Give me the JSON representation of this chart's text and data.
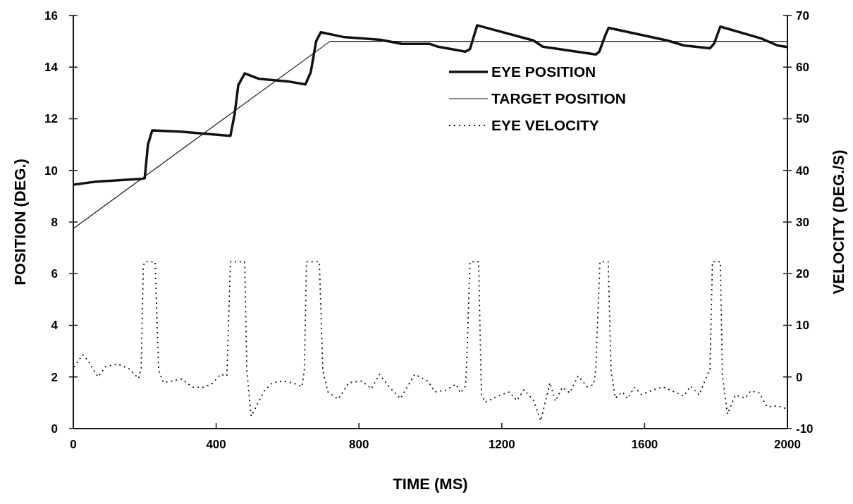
{
  "chart_data": {
    "type": "line",
    "xlabel": "TIME (MS)",
    "ylabel": "POSITION (DEG.)",
    "y2label": "VELOCITY (DEG./S)",
    "xlim": [
      0,
      2000
    ],
    "xticks": [
      0,
      400,
      800,
      1200,
      1600,
      2000
    ],
    "ylim": [
      0,
      16
    ],
    "yticks": [
      0,
      2,
      4,
      6,
      8,
      10,
      12,
      14,
      16
    ],
    "y2lim": [
      -10,
      70
    ],
    "y2ticks": [
      -10,
      0,
      10,
      20,
      30,
      40,
      50,
      60,
      70
    ],
    "legend": "top right",
    "grid": false,
    "series": [
      {
        "name": "EYE POSITION",
        "color": "#111111",
        "line_style": "solid",
        "x": [
          0,
          61,
          190,
          200,
          209,
          221,
          300,
          387,
          440,
          452,
          462,
          480,
          519,
          600,
          650,
          665,
          680,
          693,
          756,
          861,
          920,
          999,
          1019,
          1098,
          1111,
          1131,
          1289,
          1315,
          1463,
          1473,
          1489,
          1499,
          1664,
          1710,
          1783,
          1795,
          1812,
          1927,
          1972,
          2000
        ],
        "values": [
          9.45,
          9.56,
          9.67,
          9.7,
          11.0,
          11.55,
          11.5,
          11.4,
          11.34,
          12.2,
          13.3,
          13.76,
          13.55,
          13.45,
          13.33,
          13.8,
          15.0,
          15.35,
          15.17,
          15.06,
          14.9,
          14.9,
          14.8,
          14.6,
          14.7,
          15.62,
          15.03,
          14.79,
          14.49,
          14.6,
          15.2,
          15.52,
          15.03,
          14.84,
          14.73,
          14.92,
          15.57,
          15.11,
          14.84,
          14.78
        ]
      },
      {
        "name": "TARGET POSITION",
        "color": "#111111",
        "line_style": "solid",
        "x": [
          0,
          719,
          2000
        ],
        "values": [
          7.75,
          15,
          15
        ]
      },
      {
        "name": "EYE VELOCITY",
        "color": "#111111",
        "line_style": "dotted",
        "axis": "y2",
        "x": [
          2,
          26,
          41,
          69,
          91,
          124,
          156,
          183,
          190,
          196,
          200,
          229,
          239,
          252,
          275,
          304,
          334,
          363,
          387,
          413,
          430,
          440,
          480,
          486,
          498,
          519,
          535,
          558,
          588,
          617,
          640,
          647,
          653,
          689,
          699,
          713,
          742,
          772,
          808,
          835,
          857,
          886,
          916,
          956,
          993,
          1013,
          1042,
          1072,
          1084,
          1098,
          1101,
          1111,
          1135,
          1143,
          1153,
          1196,
          1222,
          1242,
          1262,
          1289,
          1309,
          1335,
          1350,
          1370,
          1390,
          1414,
          1439,
          1457,
          1463,
          1475,
          1498,
          1506,
          1518,
          1538,
          1552,
          1572,
          1591,
          1625,
          1651,
          1690,
          1710,
          1729,
          1753,
          1769,
          1783,
          1790,
          1812,
          1818,
          1832,
          1854,
          1882,
          1897,
          1921,
          1943,
          1972,
          2000
        ],
        "values": [
          1.9,
          4.3,
          3.2,
          0.0,
          2.0,
          2.5,
          1.6,
          -0.3,
          1.6,
          21.4,
          22.3,
          22.3,
          1.2,
          -1.1,
          -0.8,
          -0.4,
          -2.0,
          -2.0,
          -1.4,
          0.5,
          0.2,
          22.3,
          22.3,
          1.2,
          -7.6,
          -4.8,
          -2.7,
          -1.1,
          -0.8,
          -1.2,
          -1.9,
          1.2,
          22.3,
          22.3,
          1.2,
          -2.9,
          -4.3,
          -1.1,
          -0.8,
          -2.3,
          0.5,
          -2.0,
          -4.2,
          0.5,
          -0.8,
          -2.9,
          -2.6,
          -1.4,
          -3.1,
          -1.8,
          1.2,
          22.3,
          22.3,
          -3.4,
          -4.9,
          -3.5,
          -2.9,
          -4.6,
          -2.5,
          -4.5,
          -8.5,
          -1.1,
          -4.7,
          -2.0,
          -3.1,
          0.2,
          -1.9,
          -1.5,
          1.2,
          22.3,
          22.3,
          1.2,
          -4.1,
          -2.9,
          -4.2,
          -2.0,
          -3.4,
          -2.5,
          -1.9,
          -3.1,
          -3.7,
          -1.8,
          -3.5,
          -0.7,
          1.6,
          22.3,
          22.3,
          0.2,
          -7.2,
          -3.5,
          -4.1,
          -2.7,
          -3.1,
          -5.8,
          -5.6,
          -6.2
        ]
      }
    ]
  }
}
